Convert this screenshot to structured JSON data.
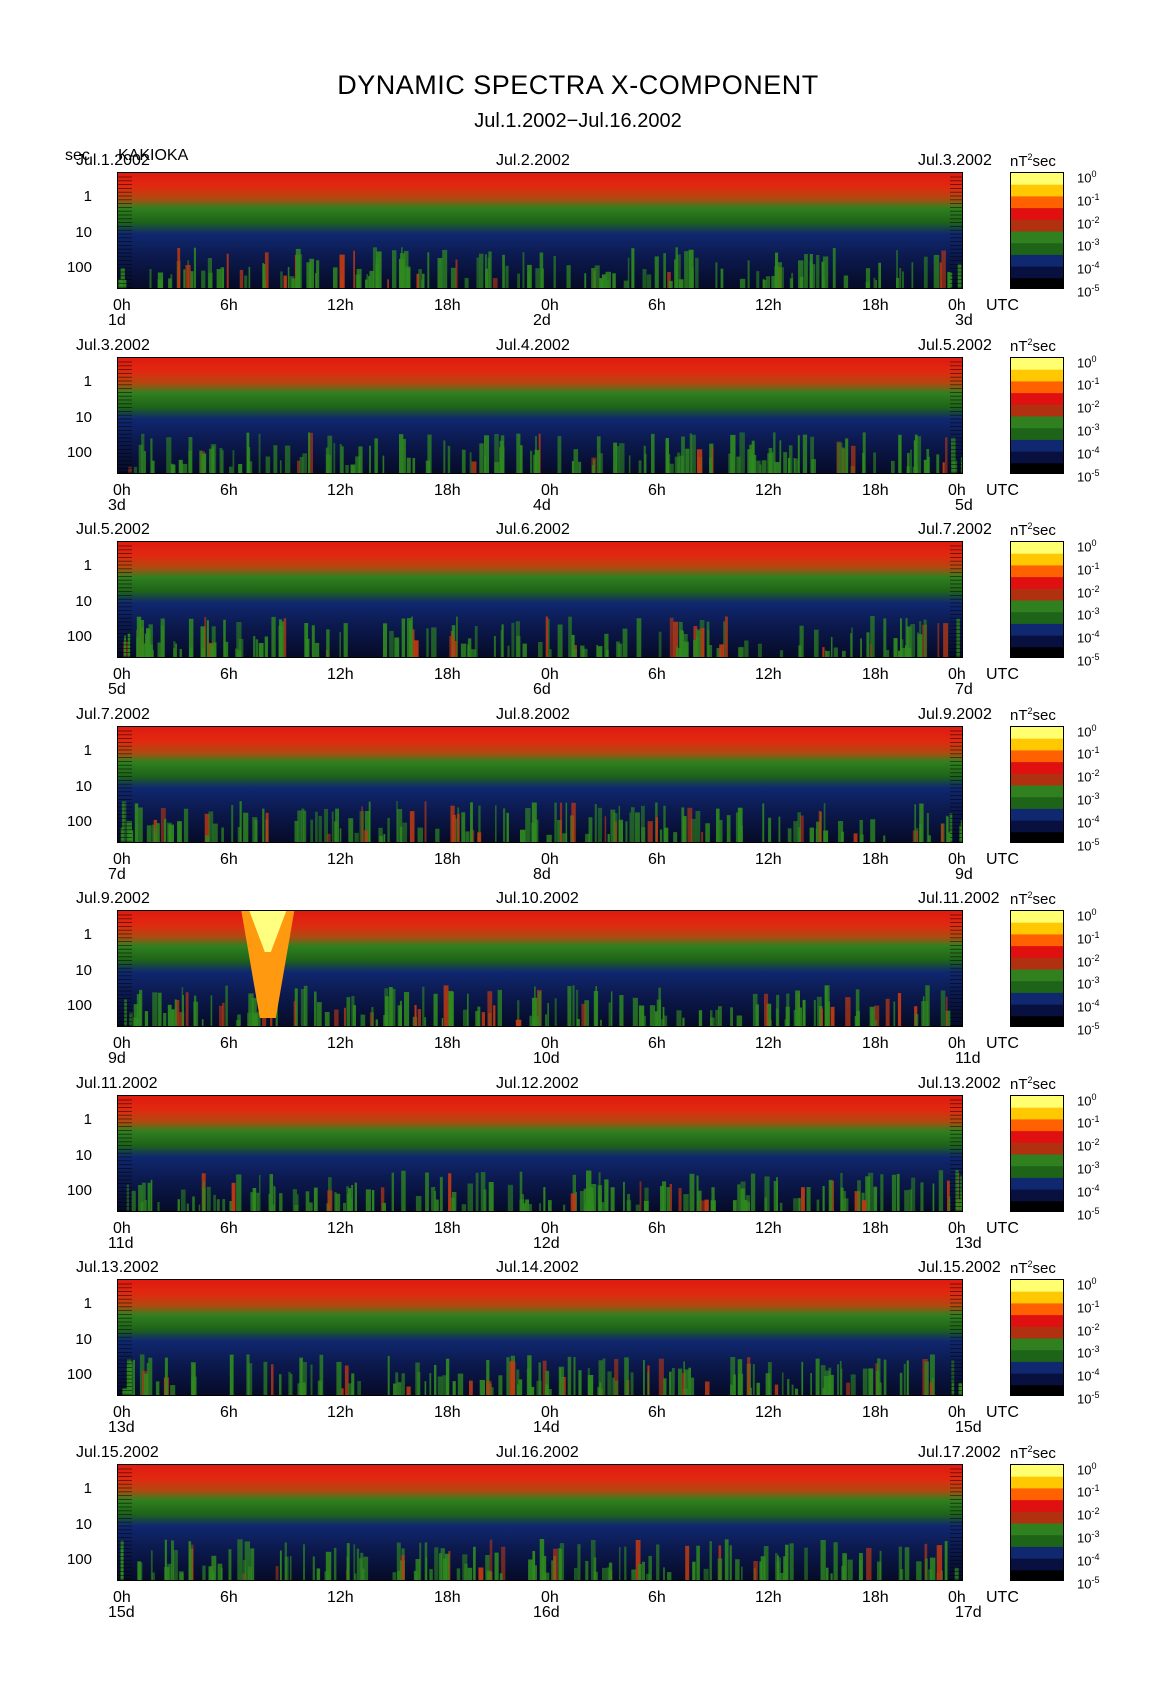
{
  "title": "DYNAMIC SPECTRA X-COMPONENT",
  "subtitle": "Jul.1.2002−Jul.16.2002",
  "station": "KAKIOKA",
  "y_unit": "sec",
  "x_unit": "UTC",
  "colorbar_unit": "nT",
  "colorbar_unit_exp": "2",
  "colorbar_unit_suffix": "sec",
  "y_tick_labels": [
    "1",
    "10",
    "100"
  ],
  "x_tick_labels": [
    "0h",
    "6h",
    "12h",
    "18h",
    "0h",
    "6h",
    "12h",
    "18h",
    "0h"
  ],
  "colorbar_ticks": [
    {
      "base": "10",
      "exp": "0"
    },
    {
      "base": "10",
      "exp": "-1"
    },
    {
      "base": "10",
      "exp": "-2"
    },
    {
      "base": "10",
      "exp": "-3"
    },
    {
      "base": "10",
      "exp": "-4"
    },
    {
      "base": "10",
      "exp": "-5"
    }
  ],
  "colorbar_colors": [
    "#ffff70",
    "#ffc800",
    "#ff6000",
    "#e01010",
    "#b03010",
    "#308020",
    "#1e6418",
    "#102870",
    "#081040",
    "#000000"
  ],
  "panels": [
    {
      "date_left": "Jul.1.2002",
      "date_mid": "Jul.2.2002",
      "date_right": "Jul.3.2002",
      "day_left": "1d",
      "day_mid": "2d",
      "day_right": "3d"
    },
    {
      "date_left": "Jul.3.2002",
      "date_mid": "Jul.4.2002",
      "date_right": "Jul.5.2002",
      "day_left": "3d",
      "day_mid": "4d",
      "day_right": "5d"
    },
    {
      "date_left": "Jul.5.2002",
      "date_mid": "Jul.6.2002",
      "date_right": "Jul.7.2002",
      "day_left": "5d",
      "day_mid": "6d",
      "day_right": "7d"
    },
    {
      "date_left": "Jul.7.2002",
      "date_mid": "Jul.8.2002",
      "date_right": "Jul.9.2002",
      "day_left": "7d",
      "day_mid": "8d",
      "day_right": "9d"
    },
    {
      "date_left": "Jul.9.2002",
      "date_mid": "Jul.10.2002",
      "date_right": "Jul.11.2002",
      "day_left": "9d",
      "day_mid": "10d",
      "day_right": "11d"
    },
    {
      "date_left": "Jul.11.2002",
      "date_mid": "Jul.12.2002",
      "date_right": "Jul.13.2002",
      "day_left": "11d",
      "day_mid": "12d",
      "day_right": "13d"
    },
    {
      "date_left": "Jul.13.2002",
      "date_mid": "Jul.14.2002",
      "date_right": "Jul.15.2002",
      "day_left": "13d",
      "day_mid": "14d",
      "day_right": "15d"
    },
    {
      "date_left": "Jul.15.2002",
      "date_mid": "Jul.16.2002",
      "date_right": "Jul.17.2002",
      "day_left": "15d",
      "day_mid": "16d",
      "day_right": "17d"
    }
  ],
  "chart_data": {
    "type": "heatmap",
    "title": "DYNAMIC SPECTRA X-COMPONENT",
    "subtitle": "Jul.1.2002−Jul.16.2002",
    "ylabel": "sec",
    "xlabel": "UTC",
    "y_scale": "log",
    "y_ticks": [
      1,
      10,
      100
    ],
    "color_scale": "log",
    "colorbar_label": "nT^2 sec",
    "colorbar_range": [
      1e-05,
      1
    ],
    "panels_count": 8,
    "hours_per_panel": 48,
    "notable_features": [
      {
        "panel": 5,
        "hour_start": 7,
        "hour_end": 10,
        "period_sec_min": 0.3,
        "period_sec_max": 100,
        "power": 1
      }
    ]
  }
}
